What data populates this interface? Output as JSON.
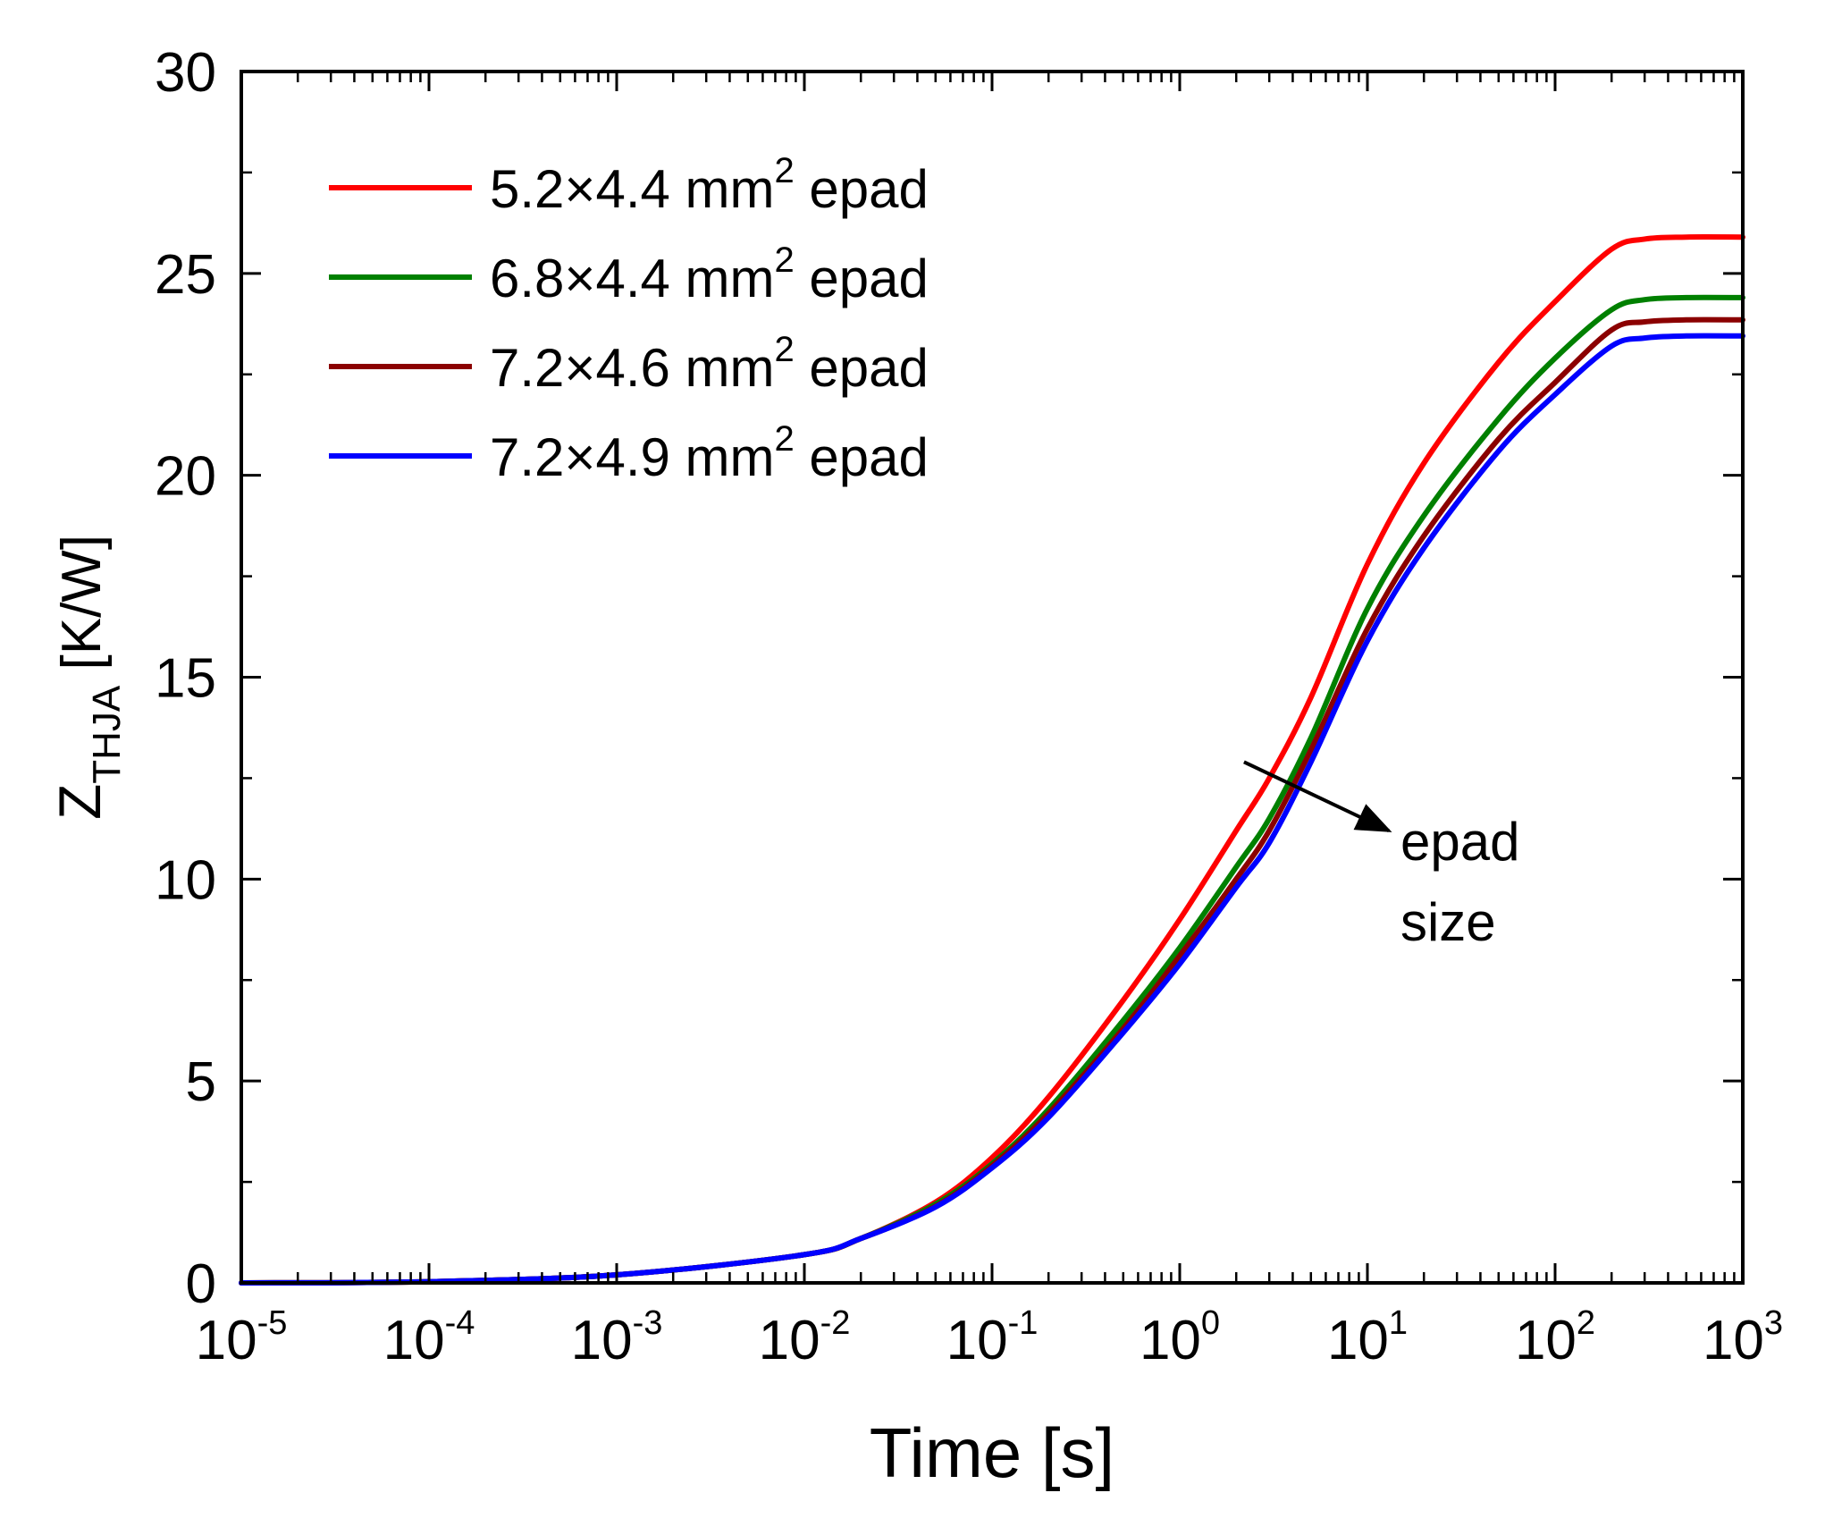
{
  "chart_data": {
    "type": "line",
    "title": "",
    "xlabel": "Time [s]",
    "ylabel": {
      "base": "Z",
      "sub": "THJA",
      "unit": " [K/W]"
    },
    "xscale": "log",
    "xlim": [
      1e-05,
      1000
    ],
    "ylim": [
      0,
      30
    ],
    "x_ticks": [
      {
        "base": "10",
        "exp": "-5"
      },
      {
        "base": "10",
        "exp": "-4"
      },
      {
        "base": "10",
        "exp": "-3"
      },
      {
        "base": "10",
        "exp": "-2"
      },
      {
        "base": "10",
        "exp": "-1"
      },
      {
        "base": "10",
        "exp": "0"
      },
      {
        "base": "10",
        "exp": "1"
      },
      {
        "base": "10",
        "exp": "2"
      },
      {
        "base": "10",
        "exp": "3"
      }
    ],
    "y_ticks": [
      "0",
      "5",
      "10",
      "15",
      "20",
      "25",
      "30"
    ],
    "grid": false,
    "legend_position": "top-left",
    "x": [
      1e-05,
      0.0001,
      0.001,
      0.01,
      0.02,
      0.05,
      0.1,
      0.2,
      0.5,
      1,
      2,
      3,
      5,
      10,
      20,
      50,
      100,
      200,
      300,
      500,
      1000
    ],
    "series": [
      {
        "name": {
          "pre": "5.2×4.4 mm",
          "sup": "2",
          "post": " epad"
        },
        "color": "#ff0000",
        "values": [
          0.0,
          0.03,
          0.2,
          0.7,
          1.1,
          2.0,
          3.1,
          4.6,
          7.0,
          9.0,
          11.2,
          12.5,
          14.5,
          17.8,
          20.3,
          22.8,
          24.3,
          25.6,
          25.85,
          25.9,
          25.9
        ]
      },
      {
        "name": {
          "pre": "6.8×4.4 mm",
          "sup": "2",
          "post": " epad"
        },
        "color": "#008000",
        "values": [
          0.0,
          0.03,
          0.2,
          0.7,
          1.1,
          1.95,
          2.95,
          4.3,
          6.5,
          8.3,
          10.3,
          11.5,
          13.5,
          16.7,
          19.0,
          21.4,
          22.9,
          24.1,
          24.35,
          24.4,
          24.4
        ]
      },
      {
        "name": {
          "pre": "7.2×4.6 mm",
          "sup": "2",
          "post": " epad"
        },
        "color": "#8b0000",
        "values": [
          0.0,
          0.03,
          0.2,
          0.7,
          1.1,
          1.9,
          2.9,
          4.2,
          6.3,
          8.1,
          10.0,
          11.2,
          13.2,
          16.2,
          18.5,
          20.9,
          22.3,
          23.6,
          23.8,
          23.85,
          23.85
        ]
      },
      {
        "name": {
          "pre": "7.2×4.9 mm",
          "sup": "2",
          "post": " epad"
        },
        "color": "#0000ff",
        "values": [
          0.0,
          0.03,
          0.2,
          0.7,
          1.1,
          1.88,
          2.85,
          4.1,
          6.2,
          7.9,
          9.8,
          10.9,
          12.9,
          15.9,
          18.2,
          20.6,
          22.0,
          23.2,
          23.4,
          23.45,
          23.45
        ]
      }
    ],
    "annotations": [
      {
        "lines": [
          "epad",
          "size"
        ],
        "arrow_from": [
          2.2,
          12.9
        ],
        "arrow_to": [
          13,
          11.2
        ],
        "text_at": [
          15,
          11.0
        ]
      }
    ]
  }
}
